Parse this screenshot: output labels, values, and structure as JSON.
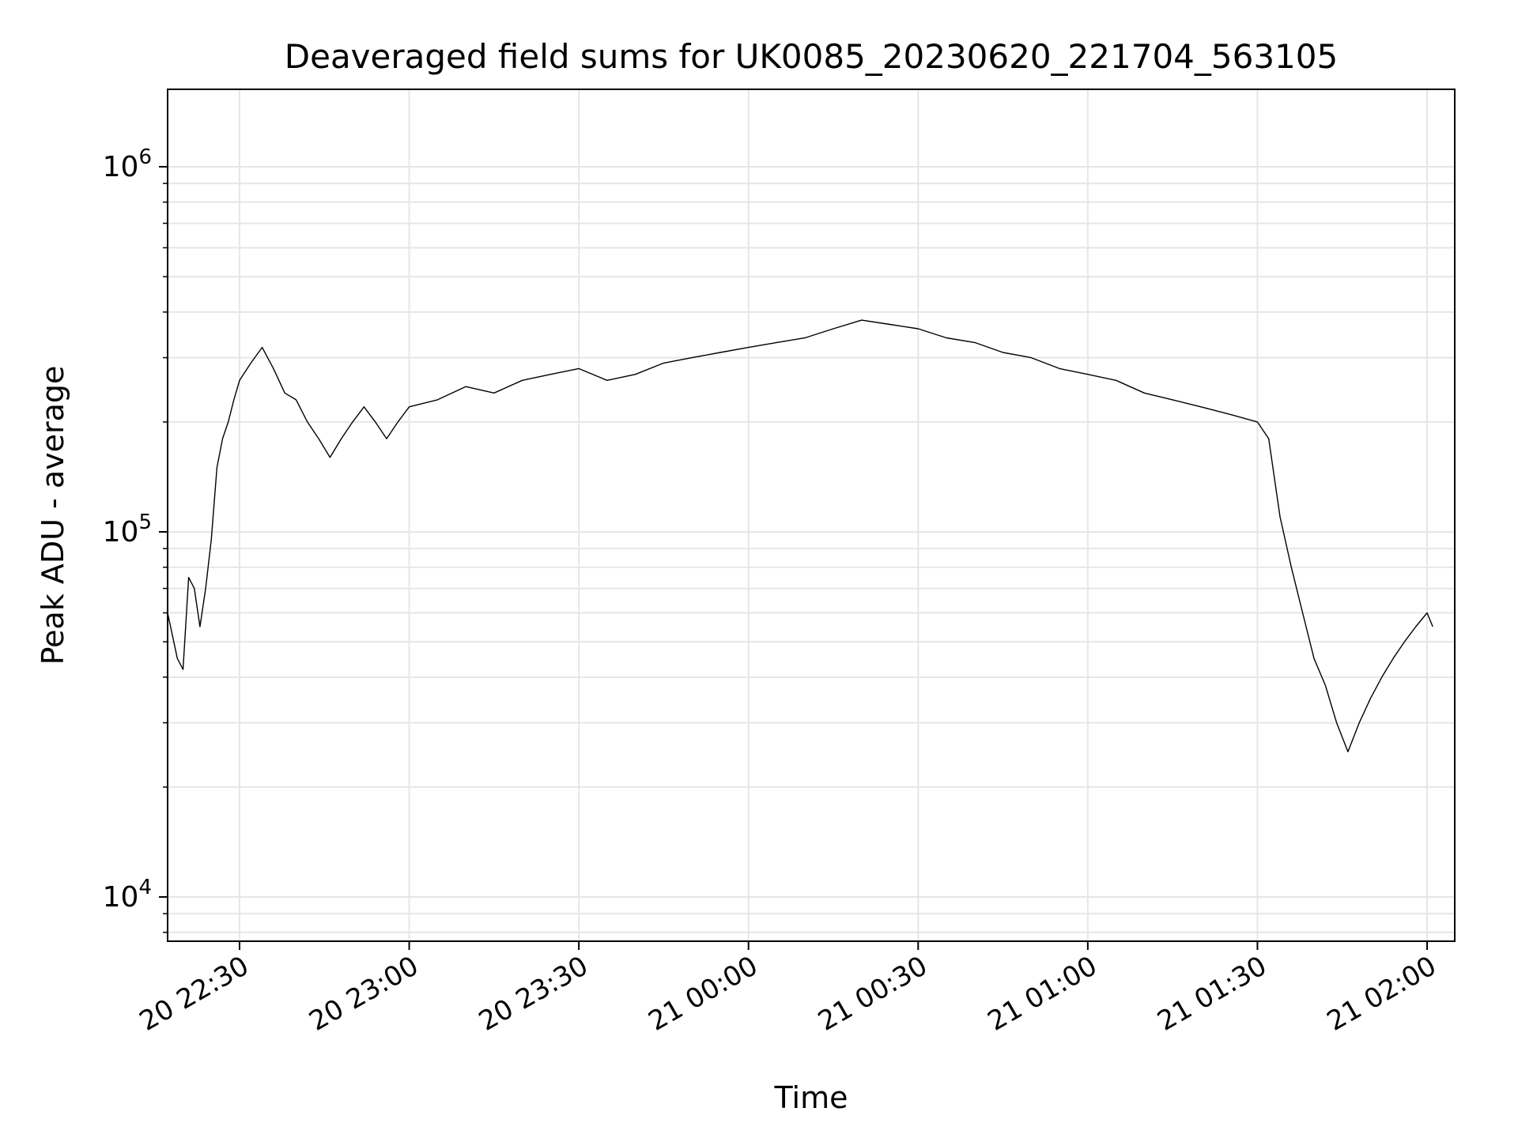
{
  "chart_data": {
    "type": "line",
    "title": "Deaveraged field sums for UK0085_20230620_221704_563105",
    "xlabel": "Time",
    "ylabel": "Peak ADU - average",
    "yscale": "log",
    "ylim": [
      8000,
      1600000
    ],
    "xlim_minutes_note": "",
    "x_ticks": [
      "20 22:30",
      "20 23:00",
      "20 23:30",
      "21 00:00",
      "21 00:30",
      "21 01:00",
      "21 01:30",
      "21 02:00"
    ],
    "y_ticks": [
      {
        "base": "10",
        "exp": "4",
        "value": 10000
      },
      {
        "base": "10",
        "exp": "5",
        "value": 100000
      },
      {
        "base": "10",
        "exp": "6",
        "value": 1000000
      }
    ],
    "grid": true,
    "series": [
      {
        "color": "#000000",
        "points": [
          [
            "20 22:17",
            60000
          ],
          [
            "20 22:19",
            45000
          ],
          [
            "20 22:20",
            42000
          ],
          [
            "20 22:21",
            75000
          ],
          [
            "20 22:22",
            70000
          ],
          [
            "20 22:23",
            55000
          ],
          [
            "20 22:24",
            70000
          ],
          [
            "20 22:25",
            95000
          ],
          [
            "20 22:26",
            150000
          ],
          [
            "20 22:27",
            180000
          ],
          [
            "20 22:28",
            200000
          ],
          [
            "20 22:29",
            230000
          ],
          [
            "20 22:30",
            260000
          ],
          [
            "20 22:32",
            290000
          ],
          [
            "20 22:34",
            320000
          ],
          [
            "20 22:36",
            280000
          ],
          [
            "20 22:38",
            240000
          ],
          [
            "20 22:40",
            230000
          ],
          [
            "20 22:42",
            200000
          ],
          [
            "20 22:44",
            180000
          ],
          [
            "20 22:46",
            160000
          ],
          [
            "20 22:48",
            180000
          ],
          [
            "20 22:50",
            200000
          ],
          [
            "20 22:52",
            220000
          ],
          [
            "20 22:54",
            200000
          ],
          [
            "20 22:56",
            180000
          ],
          [
            "20 22:58",
            200000
          ],
          [
            "20 23:00",
            220000
          ],
          [
            "20 23:05",
            230000
          ],
          [
            "20 23:10",
            250000
          ],
          [
            "20 23:15",
            240000
          ],
          [
            "20 23:20",
            260000
          ],
          [
            "20 23:25",
            270000
          ],
          [
            "20 23:30",
            280000
          ],
          [
            "20 23:35",
            260000
          ],
          [
            "20 23:40",
            270000
          ],
          [
            "20 23:45",
            290000
          ],
          [
            "20 23:50",
            300000
          ],
          [
            "20 23:55",
            310000
          ],
          [
            "21 00:00",
            320000
          ],
          [
            "21 00:05",
            330000
          ],
          [
            "21 00:10",
            340000
          ],
          [
            "21 00:15",
            360000
          ],
          [
            "21 00:20",
            380000
          ],
          [
            "21 00:25",
            370000
          ],
          [
            "21 00:30",
            360000
          ],
          [
            "21 00:35",
            340000
          ],
          [
            "21 00:40",
            330000
          ],
          [
            "21 00:45",
            310000
          ],
          [
            "21 00:50",
            300000
          ],
          [
            "21 00:55",
            280000
          ],
          [
            "21 01:00",
            270000
          ],
          [
            "21 01:05",
            260000
          ],
          [
            "21 01:10",
            240000
          ],
          [
            "21 01:15",
            230000
          ],
          [
            "21 01:20",
            220000
          ],
          [
            "21 01:25",
            210000
          ],
          [
            "21 01:30",
            200000
          ],
          [
            "21 01:32",
            180000
          ],
          [
            "21 01:34",
            110000
          ],
          [
            "21 01:36",
            80000
          ],
          [
            "21 01:38",
            60000
          ],
          [
            "21 01:40",
            45000
          ],
          [
            "21 01:42",
            38000
          ],
          [
            "21 01:44",
            30000
          ],
          [
            "21 01:46",
            25000
          ],
          [
            "21 01:48",
            30000
          ],
          [
            "21 01:50",
            35000
          ],
          [
            "21 01:52",
            40000
          ],
          [
            "21 01:54",
            45000
          ],
          [
            "21 01:56",
            50000
          ],
          [
            "21 01:58",
            55000
          ],
          [
            "21 02:00",
            60000
          ],
          [
            "21 02:01",
            55000
          ]
        ]
      }
    ]
  }
}
